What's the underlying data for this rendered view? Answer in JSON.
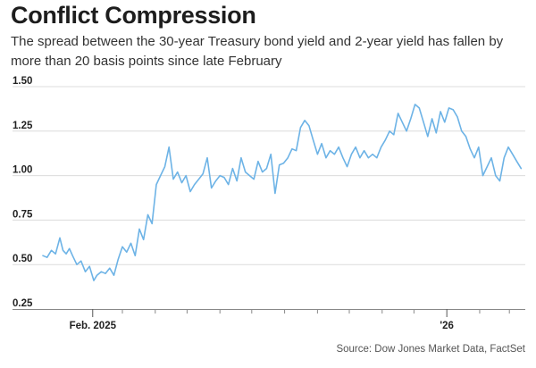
{
  "title": "Conflict Compression",
  "subtitle": "The spread between the 30-year Treasury bond yield and 2-year yield has fallen by more than 20 basis points since late February",
  "source": "Source: Dow Jones Market Data, FactSet",
  "colors": {
    "line": "#6db3e6",
    "grid": "#dcdcdc",
    "axis": "#555555",
    "text": "#1a1a1a"
  },
  "chart_data": {
    "type": "line",
    "title": "Conflict Compression",
    "xlabel": "",
    "ylabel": "",
    "ylim": [
      0.25,
      1.5
    ],
    "yticks": [
      0.25,
      0.5,
      0.75,
      1.0,
      1.25,
      1.5
    ],
    "ytick_labels": [
      "0.25",
      "0.50",
      "0.75",
      "1.00",
      "1.25",
      "1.50"
    ],
    "xlim": [
      "2024-12-16",
      "2026-03-16"
    ],
    "xtick_labels": [
      {
        "x": "2025-02-01",
        "label": "Feb. 2025"
      },
      {
        "x": "2026-01-01",
        "label": "'26"
      }
    ],
    "minor_tick_months": [
      "2025-03-01",
      "2025-04-01",
      "2025-05-01",
      "2025-06-01",
      "2025-07-01",
      "2025-08-01",
      "2025-09-01",
      "2025-10-01",
      "2025-11-01",
      "2025-12-01",
      "2026-02-01",
      "2026-03-01"
    ],
    "grid": true,
    "series": [
      {
        "x": [
          "2024-12-16",
          "2024-12-20",
          "2024-12-24",
          "2024-12-28",
          "2025-01-01",
          "2025-01-04",
          "2025-01-07",
          "2025-01-10",
          "2025-01-13",
          "2025-01-17",
          "2025-01-21",
          "2025-01-25",
          "2025-01-29",
          "2025-02-02",
          "2025-02-05",
          "2025-02-09",
          "2025-02-13",
          "2025-02-17",
          "2025-02-21",
          "2025-02-25",
          "2025-03-01",
          "2025-03-05",
          "2025-03-09",
          "2025-03-13",
          "2025-03-17",
          "2025-03-21",
          "2025-03-25",
          "2025-03-29",
          "2025-04-02",
          "2025-04-06",
          "2025-04-10",
          "2025-04-14",
          "2025-04-18",
          "2025-04-22",
          "2025-04-26",
          "2025-04-30",
          "2025-05-04",
          "2025-05-08",
          "2025-05-12",
          "2025-05-16",
          "2025-05-20",
          "2025-05-24",
          "2025-05-28",
          "2025-06-01",
          "2025-06-05",
          "2025-06-09",
          "2025-06-13",
          "2025-06-17",
          "2025-06-21",
          "2025-06-25",
          "2025-06-29",
          "2025-07-03",
          "2025-07-07",
          "2025-07-11",
          "2025-07-15",
          "2025-07-19",
          "2025-07-23",
          "2025-07-27",
          "2025-07-31",
          "2025-08-04",
          "2025-08-08",
          "2025-08-12",
          "2025-08-16",
          "2025-08-20",
          "2025-08-24",
          "2025-08-28",
          "2025-09-01",
          "2025-09-05",
          "2025-09-09",
          "2025-09-13",
          "2025-09-17",
          "2025-09-21",
          "2025-09-25",
          "2025-09-29",
          "2025-10-03",
          "2025-10-07",
          "2025-10-11",
          "2025-10-15",
          "2025-10-19",
          "2025-10-23",
          "2025-10-27",
          "2025-10-31",
          "2025-11-04",
          "2025-11-08",
          "2025-11-12",
          "2025-11-16",
          "2025-11-20",
          "2025-11-24",
          "2025-11-28",
          "2025-12-02",
          "2025-12-06",
          "2025-12-10",
          "2025-12-14",
          "2025-12-18",
          "2025-12-22",
          "2025-12-26",
          "2025-12-30",
          "2026-01-03",
          "2026-01-07",
          "2026-01-11",
          "2026-01-15",
          "2026-01-19",
          "2026-01-23",
          "2026-01-27",
          "2026-01-31",
          "2026-02-04",
          "2026-02-08",
          "2026-02-12",
          "2026-02-16",
          "2026-02-20",
          "2026-02-24",
          "2026-02-28",
          "2026-03-04",
          "2026-03-08",
          "2026-03-12"
        ],
        "values": [
          0.55,
          0.54,
          0.58,
          0.56,
          0.65,
          0.58,
          0.56,
          0.59,
          0.55,
          0.5,
          0.52,
          0.46,
          0.49,
          0.41,
          0.44,
          0.46,
          0.45,
          0.48,
          0.44,
          0.53,
          0.6,
          0.57,
          0.62,
          0.55,
          0.7,
          0.64,
          0.78,
          0.73,
          0.95,
          1.0,
          1.05,
          1.16,
          0.98,
          1.02,
          0.96,
          1.0,
          0.91,
          0.95,
          0.98,
          1.01,
          1.1,
          0.93,
          0.97,
          1.0,
          0.99,
          0.95,
          1.04,
          0.97,
          1.1,
          1.02,
          1.0,
          0.98,
          1.08,
          1.02,
          1.04,
          1.12,
          0.9,
          1.06,
          1.07,
          1.1,
          1.15,
          1.14,
          1.27,
          1.31,
          1.28,
          1.2,
          1.12,
          1.18,
          1.1,
          1.14,
          1.12,
          1.16,
          1.1,
          1.05,
          1.12,
          1.16,
          1.1,
          1.14,
          1.1,
          1.12,
          1.1,
          1.16,
          1.2,
          1.25,
          1.23,
          1.35,
          1.3,
          1.25,
          1.32,
          1.4,
          1.38,
          1.3,
          1.22,
          1.32,
          1.24,
          1.36,
          1.3,
          1.38,
          1.37,
          1.33,
          1.25,
          1.22,
          1.15,
          1.1,
          1.16,
          1.0,
          1.05,
          1.1,
          1.0,
          0.97,
          1.1,
          1.16,
          1.12,
          1.08,
          1.04
        ]
      }
    ]
  }
}
